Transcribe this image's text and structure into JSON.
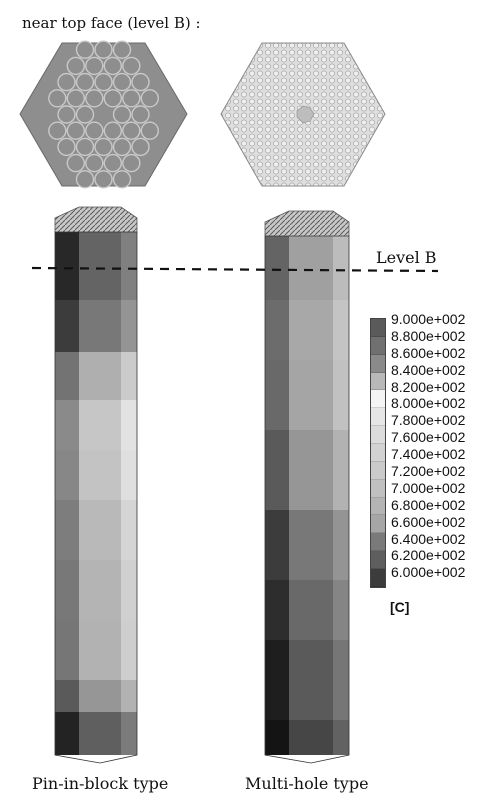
{
  "heading": "near top face (level B) :",
  "level_label": "Level B",
  "captions": {
    "left": "Pin-in-block type",
    "right": "Multi-hole type"
  },
  "legend": {
    "values": [
      "9.000e+002",
      "8.800e+002",
      "8.600e+002",
      "8.400e+002",
      "8.200e+002",
      "8.000e+002",
      "7.800e+002",
      "7.600e+002",
      "7.400e+002",
      "7.200e+002",
      "7.000e+002",
      "6.800e+002",
      "6.600e+002",
      "6.400e+002",
      "6.200e+002",
      "6.000e+002"
    ],
    "unit": "[C]",
    "colors": [
      "#5a5a5a",
      "#707070",
      "#8a8a8a",
      "#b8b8b8",
      "#f4f4f4",
      "#e6e6e6",
      "#dcdcdc",
      "#d2d2d2",
      "#cacaca",
      "#c0c0c0",
      "#b4b4b4",
      "#a6a6a6",
      "#7a7a7a",
      "#5e5e5e",
      "#3c3c3c"
    ]
  }
}
